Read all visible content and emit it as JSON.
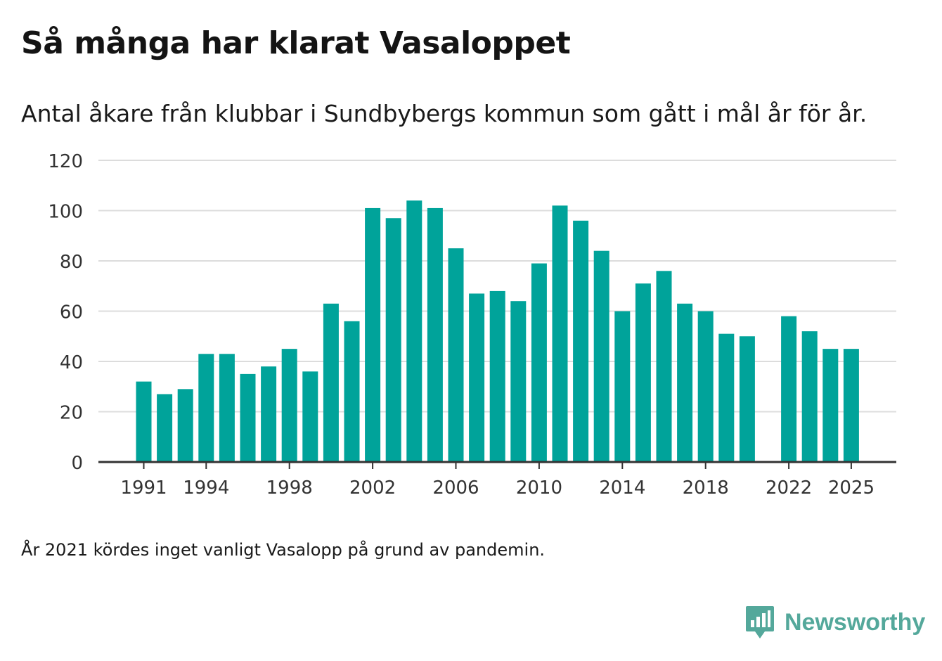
{
  "title": "Så många har klarat Vasaloppet",
  "subtitle": "Antal åkare från klubbar i Sundbybergs kommun som gått i mål år för år.",
  "note": "År 2021 kördes inget vanligt Vasalopp på grund av pandemin.",
  "brand": {
    "name": "Newsworthy",
    "icon": "newsworthy-logo-icon",
    "color": "#54a89b"
  },
  "colors": {
    "bar": "#00a39a",
    "grid": "#dcdcdc",
    "axis": "#333333",
    "text": "#333333"
  },
  "chart_data": {
    "type": "bar",
    "title": "Så många har klarat Vasaloppet",
    "xlabel": "",
    "ylabel": "",
    "ylim": [
      0,
      120
    ],
    "yticks": [
      0,
      20,
      40,
      60,
      80,
      100,
      120
    ],
    "xtick_labels": [
      "1991",
      "1994",
      "1998",
      "2002",
      "2006",
      "2010",
      "2014",
      "2018",
      "2022",
      "2025"
    ],
    "grid": true,
    "categories": [
      "1991",
      "1992",
      "1993",
      "1994",
      "1995",
      "1996",
      "1997",
      "1998",
      "1999",
      "2000",
      "2001",
      "2002",
      "2003",
      "2004",
      "2005",
      "2006",
      "2007",
      "2008",
      "2009",
      "2010",
      "2011",
      "2012",
      "2013",
      "2014",
      "2015",
      "2016",
      "2017",
      "2018",
      "2019",
      "2020",
      "2021",
      "2022",
      "2023",
      "2024",
      "2025"
    ],
    "values": [
      32,
      27,
      29,
      43,
      43,
      35,
      38,
      45,
      36,
      63,
      56,
      101,
      97,
      104,
      101,
      85,
      67,
      68,
      64,
      79,
      102,
      96,
      84,
      60,
      71,
      76,
      63,
      60,
      51,
      50,
      null,
      58,
      52,
      45,
      45
    ]
  }
}
